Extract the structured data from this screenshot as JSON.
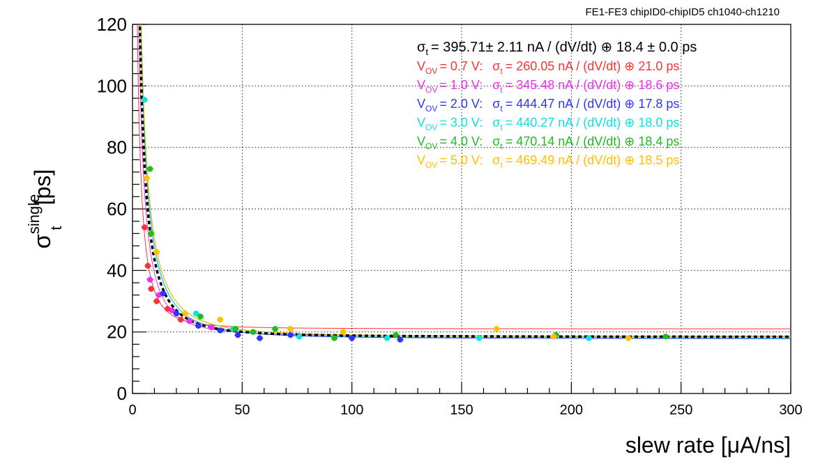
{
  "header": "FE1-FE3   chipID0-chipID5   ch1040-ch1210",
  "chart_data": {
    "type": "scatter",
    "xlabel": "slew rate [μA/ns]",
    "ylabel_main": "σ",
    "ylabel_sup": "single",
    "ylabel_sub": "t",
    "ylabel_unit": "[ps]",
    "xlim": [
      0,
      300
    ],
    "ylim": [
      0,
      120
    ],
    "xticks": [
      0,
      50,
      100,
      150,
      200,
      250,
      300
    ],
    "yticks": [
      0,
      20,
      40,
      60,
      80,
      100,
      120
    ],
    "grid": true,
    "global_fit": {
      "text_sigma": "σ",
      "text_sub": "t",
      "text_rest": "= 395.71± 2.11 nA / (dV/dt) ⊕ 18.4 ± 0.0 ps",
      "A": 395.71,
      "C": 18.4,
      "color": "#000000"
    },
    "series": [
      {
        "vov": "0.7 V",
        "fit_text": "= 260.05 nA / (dV/dt) ⊕ 21.0 ps",
        "A": 260.05,
        "C": 21.0,
        "color": "#ff3333",
        "points": [
          [
            5.5,
            54
          ],
          [
            7,
            41.5
          ],
          [
            8.5,
            34
          ],
          [
            11,
            30
          ],
          [
            16,
            27.5
          ],
          [
            22,
            24
          ]
        ]
      },
      {
        "vov": "1.0 V",
        "fit_text": "= 345.48 nA / (dV/dt) ⊕ 18.6 ps",
        "A": 345.48,
        "C": 18.6,
        "color": "#ee33ee",
        "points": [
          [
            8,
            37
          ],
          [
            12,
            32
          ],
          [
            18,
            27
          ],
          [
            26,
            23.5
          ],
          [
            36,
            21.5
          ]
        ]
      },
      {
        "vov": "2.0 V",
        "fit_text": "= 444.47 nA / (dV/dt) ⊕ 17.8 ps",
        "A": 444.47,
        "C": 17.8,
        "color": "#3333ff",
        "points": [
          [
            14,
            32.5
          ],
          [
            20,
            26
          ],
          [
            30,
            22
          ],
          [
            40,
            20.5
          ],
          [
            48,
            19
          ],
          [
            58,
            18
          ],
          [
            72,
            19
          ],
          [
            100,
            18
          ],
          [
            122,
            17.5
          ]
        ]
      },
      {
        "vov": "3.0 V",
        "fit_text": "= 440.27 nA / (dV/dt) ⊕ 18.0 ps",
        "A": 440.27,
        "C": 18.0,
        "color": "#11e0e0",
        "points": [
          [
            5.5,
            95.5
          ],
          [
            29,
            26
          ],
          [
            46,
            21
          ],
          [
            76,
            18.5
          ],
          [
            116,
            18
          ],
          [
            158,
            18
          ],
          [
            208,
            18
          ]
        ]
      },
      {
        "vov": "4.0 V",
        "fit_text": "= 470.14 nA / (dV/dt) ⊕ 18.4 ps",
        "A": 470.14,
        "C": 18.4,
        "color": "#22bb22",
        "points": [
          [
            8,
            73
          ],
          [
            8.5,
            52
          ],
          [
            31,
            25
          ],
          [
            47,
            21
          ],
          [
            55,
            20
          ],
          [
            65,
            21
          ],
          [
            92,
            18
          ],
          [
            120,
            19
          ],
          [
            193,
            19
          ],
          [
            243,
            18.5
          ]
        ]
      },
      {
        "vov": "5.0 V",
        "fit_text": "= 469.49 nA / (dV/dt) ⊕ 18.5 ps",
        "A": 469.49,
        "C": 18.5,
        "color": "#ffc000",
        "points": [
          [
            6.5,
            70
          ],
          [
            11,
            46
          ],
          [
            24,
            26
          ],
          [
            40,
            24
          ],
          [
            72,
            21
          ],
          [
            96,
            20
          ],
          [
            166,
            21
          ],
          [
            192,
            18.5
          ],
          [
            226,
            18
          ]
        ]
      }
    ]
  }
}
